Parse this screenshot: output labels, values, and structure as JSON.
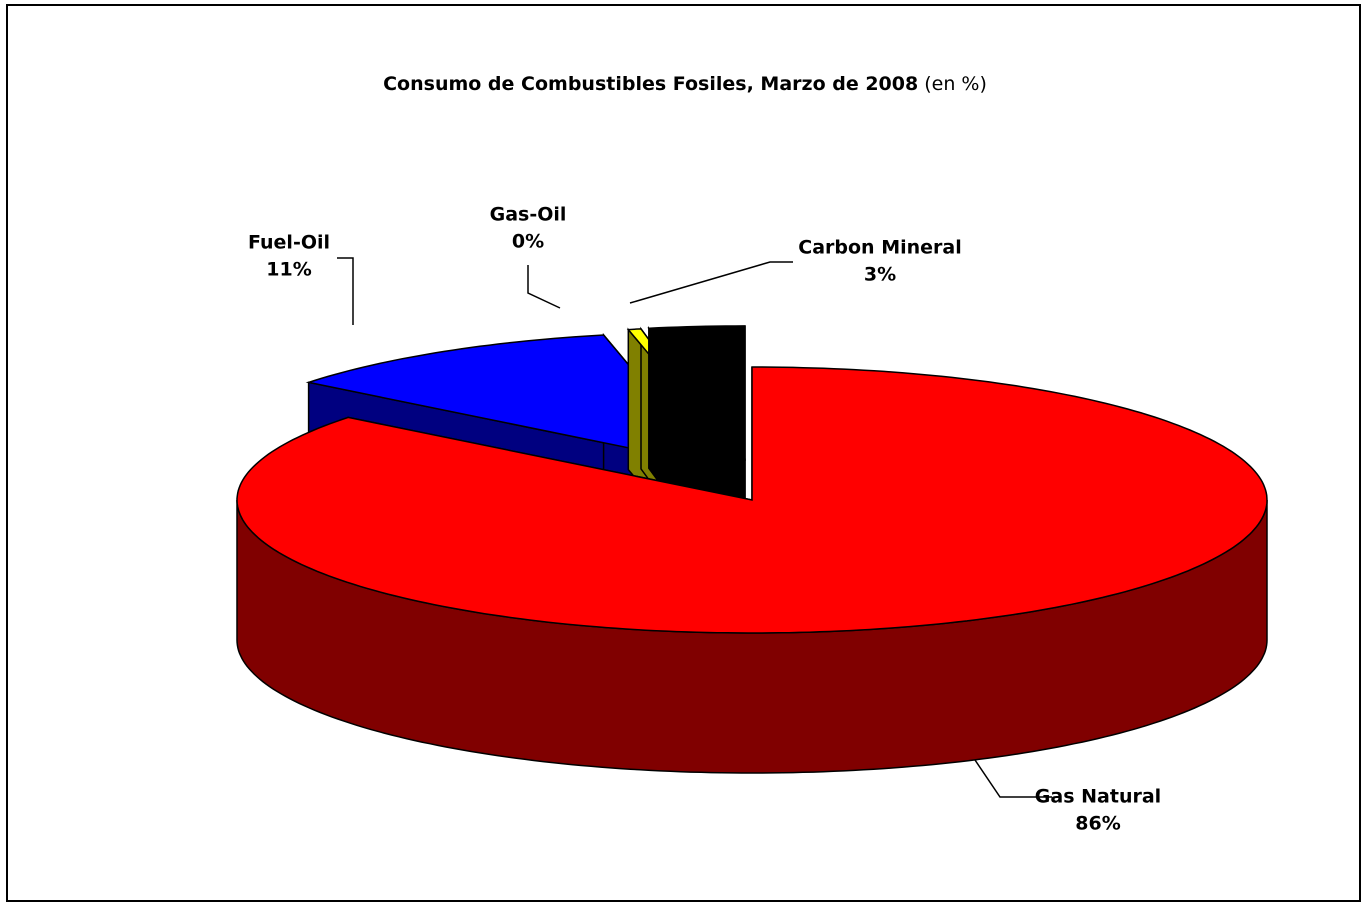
{
  "chart_data": {
    "type": "pie3d",
    "title": "Consumo de Combustibles Fosiles, Marzo de 2008",
    "subtitle": "(en %)",
    "categories": [
      "Gas Natural",
      "Fuel-Oil",
      "Gas-Oil",
      "Carbon Mineral"
    ],
    "values": [
      86,
      11,
      0.4,
      3
    ],
    "value_labels": [
      "86%",
      "11%",
      "0%",
      "3%"
    ],
    "colors": [
      "#ff0000",
      "#0000ff",
      "#ffff00",
      "#000000"
    ]
  }
}
